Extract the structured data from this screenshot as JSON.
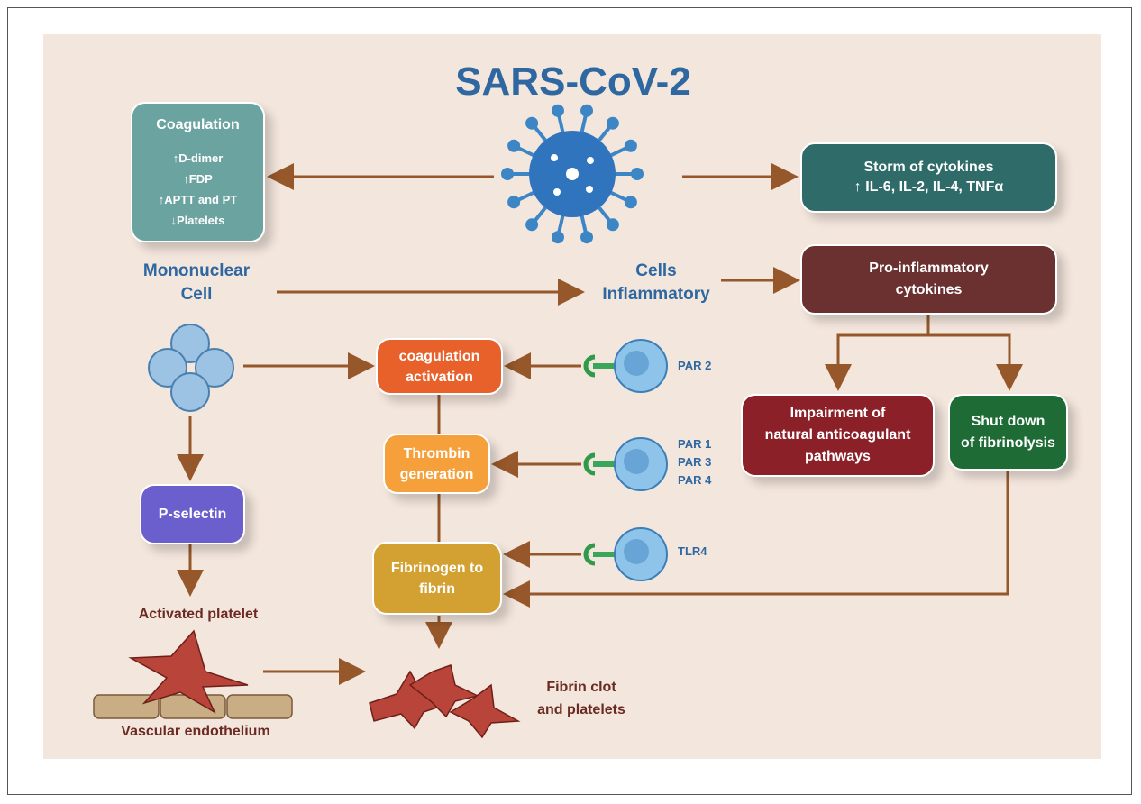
{
  "title": "SARS-CoV-2",
  "coagulation": {
    "title": "Coagulation",
    "lines": [
      "↑D-dimer",
      "↑FDP",
      "↑APTT and PT",
      "↓Platelets"
    ]
  },
  "storm": {
    "lines": [
      "Storm of cytokines",
      "↑ IL-6, IL-2, IL-4, TNFα"
    ]
  },
  "pro_inflammatory": {
    "lines": [
      "Pro-inflammatory",
      "cytokines"
    ]
  },
  "impairment": {
    "lines": [
      "Impairment of",
      "natural anticoagulant",
      "pathways"
    ]
  },
  "shutdown": {
    "lines": [
      "Shut down",
      "of fibrinolysis"
    ]
  },
  "coagulation_activation": {
    "lines": [
      "coagulation",
      "activation"
    ]
  },
  "thrombin": {
    "lines": [
      "Thrombin",
      "generation"
    ]
  },
  "fibrinogen": {
    "lines": [
      "Fibrinogen to",
      "fibrin"
    ]
  },
  "p_selectin": {
    "lines": [
      "P-selectin"
    ]
  },
  "mononuclear": {
    "lines": [
      "Mononuclear",
      "Cell"
    ]
  },
  "cells_inflammatory": {
    "lines": [
      "Cells",
      "Inflammatory"
    ]
  },
  "receptors": [
    [
      "PAR 2"
    ],
    [
      "PAR 1",
      "PAR 3",
      "PAR 4"
    ],
    [
      "TLR4"
    ]
  ],
  "activated_platelet": "Activated platelet",
  "vascular_endothelium": "Vascular endothelium",
  "fibrin_clot": {
    "lines": [
      "Fibrin clot",
      "and platelets"
    ]
  }
}
